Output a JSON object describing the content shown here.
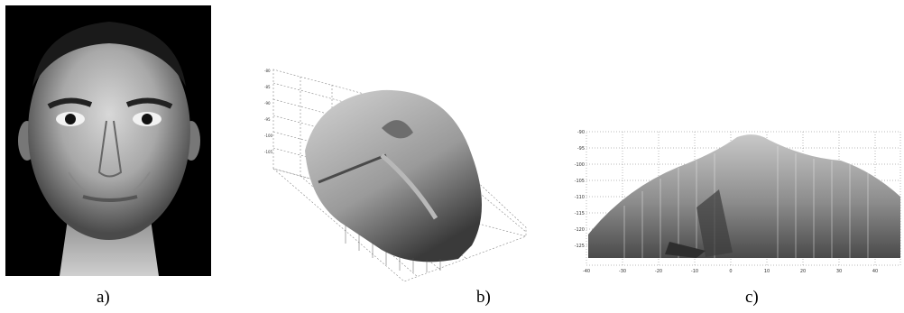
{
  "figure": {
    "panels": [
      {
        "id": "a",
        "caption": "a)",
        "content": "grayscale frontal face photograph"
      },
      {
        "id": "b",
        "caption": "b)",
        "content": "3D mesh surface plot, oblique view"
      },
      {
        "id": "c",
        "caption": "c)",
        "content": "3D mesh surface plot, side view"
      }
    ]
  },
  "colors": {
    "background": "#ffffff",
    "photo_background": "#000000",
    "mesh_light": "#c9c9c9",
    "mesh_mid": "#8a8a8a",
    "mesh_dark": "#3a3a3a",
    "grid": "#777777"
  },
  "chart_c_axis": {
    "x_ticks": [
      "-40",
      "-30",
      "-20",
      "-10",
      "0",
      "10",
      "20",
      "30",
      "40"
    ],
    "y_ticks": [
      "-90",
      "-95",
      "-100",
      "-105",
      "-110",
      "-115",
      "-120",
      "-125"
    ]
  }
}
